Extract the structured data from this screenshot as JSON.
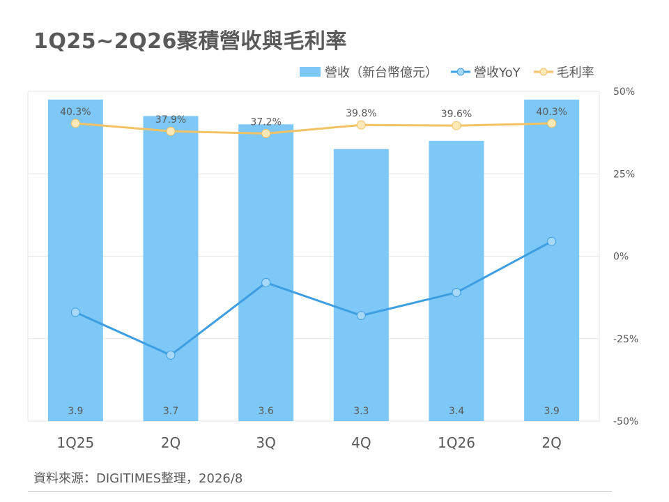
{
  "title": "1Q25~2Q26聚積營收與毛利率",
  "source": "資料來源：DIGITIMES整理，2026/8",
  "colors": {
    "bar": "#7ec8f8",
    "yoy": "#3d9ee2",
    "yoy_marker_fill": "#a8d8f8",
    "margin": "#f2c265",
    "margin_marker_fill": "#fde8b8",
    "grid": "#e6e6e6",
    "axis_text": "#595959"
  },
  "chart_data": {
    "type": "bar",
    "title": "1Q25~2Q26聚積營收與毛利率",
    "categories": [
      "1Q25",
      "2Q",
      "3Q",
      "4Q",
      "1Q26",
      "2Q"
    ],
    "series": [
      {
        "name": "營收（新台幣億元）",
        "type": "bar",
        "axis": "left",
        "values": [
          3.9,
          3.7,
          3.6,
          3.3,
          3.4,
          3.9
        ],
        "labels": [
          "3.9",
          "3.7",
          "3.6",
          "3.3",
          "3.4",
          "3.9"
        ]
      },
      {
        "name": "營收YoY",
        "type": "line",
        "axis": "right",
        "values": [
          -17,
          -30,
          -8,
          -18,
          -11,
          4.5
        ]
      },
      {
        "name": "毛利率",
        "type": "line",
        "axis": "right",
        "values": [
          40.3,
          37.9,
          37.2,
          39.8,
          39.6,
          40.3
        ],
        "labels": [
          "40.3%",
          "37.9%",
          "37.2%",
          "39.8%",
          "39.6%",
          "40.3%"
        ]
      }
    ],
    "left_axis": {
      "min": 0,
      "max": 4,
      "visible": false
    },
    "right_axis": {
      "min": -50,
      "max": 50,
      "ticks": [
        50,
        25,
        0,
        -25,
        -50
      ],
      "tick_labels": [
        "50%",
        "25%",
        "0%",
        "-25%",
        "-50%"
      ]
    },
    "grid": true,
    "legend_position": "top-right"
  }
}
